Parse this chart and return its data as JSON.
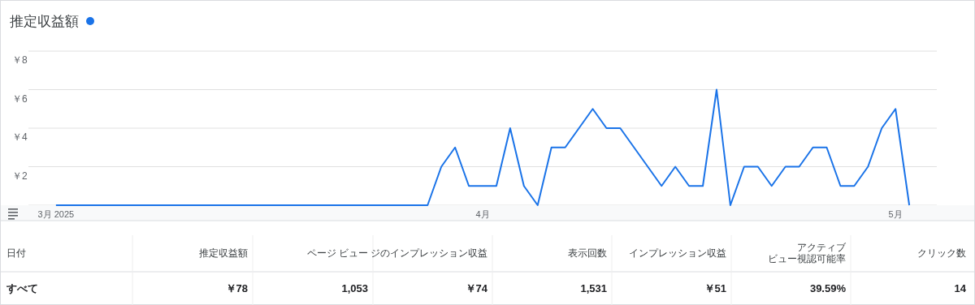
{
  "chart_data": {
    "type": "line",
    "title": "推定収益額",
    "x": [
      "2025-03-01",
      "2025-03-02",
      "2025-03-03",
      "2025-03-04",
      "2025-03-05",
      "2025-03-06",
      "2025-03-07",
      "2025-03-08",
      "2025-03-09",
      "2025-03-10",
      "2025-03-11",
      "2025-03-12",
      "2025-03-13",
      "2025-03-14",
      "2025-03-15",
      "2025-03-16",
      "2025-03-17",
      "2025-03-18",
      "2025-03-19",
      "2025-03-20",
      "2025-03-21",
      "2025-03-22",
      "2025-03-23",
      "2025-03-24",
      "2025-03-25",
      "2025-03-26",
      "2025-03-27",
      "2025-03-28",
      "2025-03-29",
      "2025-03-30",
      "2025-03-31",
      "2025-04-01",
      "2025-04-02",
      "2025-04-03",
      "2025-04-04",
      "2025-04-05",
      "2025-04-06",
      "2025-04-07",
      "2025-04-08",
      "2025-04-09",
      "2025-04-10",
      "2025-04-11",
      "2025-04-12",
      "2025-04-13",
      "2025-04-14",
      "2025-04-15",
      "2025-04-16",
      "2025-04-17",
      "2025-04-18",
      "2025-04-19",
      "2025-04-20",
      "2025-04-21",
      "2025-04-22",
      "2025-04-23",
      "2025-04-24",
      "2025-04-25",
      "2025-04-26",
      "2025-04-27",
      "2025-04-28",
      "2025-04-29",
      "2025-04-30",
      "2025-05-01",
      "2025-05-02"
    ],
    "series": [
      {
        "color": "#1a73e8",
        "values": [
          0,
          0,
          0,
          0,
          0,
          0,
          0,
          0,
          0,
          0,
          0,
          0,
          0,
          0,
          0,
          0,
          0,
          0,
          0,
          0,
          0,
          0,
          0,
          0,
          0,
          0,
          0,
          0,
          2,
          3,
          1,
          1,
          1,
          4,
          1,
          0,
          3,
          3,
          4,
          5,
          4,
          4,
          3,
          2,
          1,
          2,
          1,
          1,
          6,
          0,
          2,
          2,
          1,
          2,
          2,
          3,
          3,
          1,
          1,
          2,
          4,
          5,
          0
        ]
      }
    ],
    "xlim": [
      "2025-02-27",
      "2025-05-04"
    ],
    "xticks": [
      {
        "value": "2025-03-01",
        "label": "3月 2025"
      },
      {
        "value": "2025-04-01",
        "label": "4月"
      },
      {
        "value": "2025-05-01",
        "label": "5月"
      }
    ],
    "ylim": [
      0,
      8
    ],
    "yticks": [
      {
        "value": 0,
        "label": null
      },
      {
        "value": 2,
        "label": "￥2"
      },
      {
        "value": 4,
        "label": "￥4"
      },
      {
        "value": 6,
        "label": "￥6"
      },
      {
        "value": 8,
        "label": "￥8"
      }
    ],
    "grid": "y",
    "line_style": "solid",
    "marker": "none",
    "annotations": [
      "日付",
      "推定収益額",
      "ページ ビュー",
      "ジのインプレッション収益",
      "表示回数",
      "インプレッション収益",
      "アクティブビュー視認可能率",
      "クリック数",
      "すべて",
      "￥78",
      "1,053",
      "￥74",
      "1,531",
      "￥51",
      "39.59%",
      "14"
    ]
  }
}
